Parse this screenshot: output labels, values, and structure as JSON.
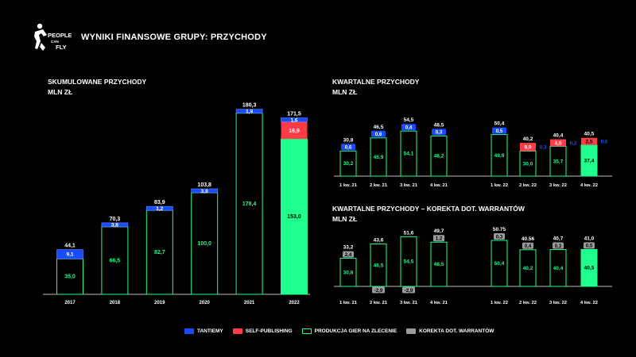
{
  "header": {
    "logo_text": "PEOPLE CAN FLY",
    "title": "WYNIKI FINANSOWE GRUPY: PRZYCHODY"
  },
  "colors": {
    "tantiemy": "#1a4cff",
    "self_publishing": "#ff3b46",
    "produkcja": "#1eff8e",
    "korekta": "#9a9a9a",
    "background": "#000000"
  },
  "legend": {
    "items": [
      {
        "key": "tantiemy",
        "label": "TANTIEMY"
      },
      {
        "key": "self_publishing",
        "label": "SELF-PUBLISHING"
      },
      {
        "key": "produkcja",
        "label": "PRODUKCJA GIER NA ZLECENIE"
      },
      {
        "key": "korekta",
        "label": "KOREKTA DOT. WARRANTÓW"
      }
    ]
  },
  "chart_data": [
    {
      "id": "cumulative",
      "type": "bar",
      "title": "SKUMULOWANE PRZYCHODY",
      "subtitle": "MLN ZŁ",
      "categories": [
        "2017",
        "2018",
        "2019",
        "2020",
        "2021",
        "2022"
      ],
      "series": [
        {
          "name": "PRODUKCJA GIER NA ZLECENIE",
          "values": [
            "35,0",
            "66,5",
            "82,7",
            "100,0",
            "178,4",
            "153,0"
          ]
        },
        {
          "name": "SELF-PUBLISHING",
          "values": [
            null,
            null,
            null,
            null,
            null,
            "16,9"
          ]
        },
        {
          "name": "TANTIEMY",
          "values": [
            "9,1",
            "3,8",
            "1,2",
            "3,8",
            "1,9",
            "1,6"
          ]
        }
      ],
      "totals": [
        "44,1",
        "70,3",
        "83,9",
        "103,8",
        "180,3",
        "171,5"
      ],
      "highlight_last": true
    },
    {
      "id": "quarterly",
      "type": "bar",
      "title": "KWARTALNE PRZYCHODY",
      "subtitle": "MLN ZŁ",
      "categories": [
        "1 kw. 21",
        "2 kw. 21",
        "3 kw. 21",
        "4 kw. 21",
        "1 kw. 22",
        "2 kw. 22",
        "3 kw. 22",
        "4 kw. 22"
      ],
      "series": [
        {
          "name": "PRODUKCJA GIER NA ZLECENIE",
          "values": [
            "30,2",
            "45,9",
            "54,1",
            "48,2",
            "49,9",
            "30,0",
            "35,7",
            "37,4"
          ]
        },
        {
          "name": "SELF-PUBLISHING",
          "values": [
            null,
            null,
            null,
            null,
            null,
            "9,9",
            "4,5",
            "2,5"
          ]
        },
        {
          "name": "TANTIEMY",
          "values": [
            "0,6",
            "0,6",
            "0,4",
            "0,3",
            "0,5",
            "0,3",
            "0,2",
            "0,6"
          ]
        }
      ],
      "totals": [
        "30,8",
        "46,5",
        "54,5",
        "48,5",
        "50,4",
        "40,2",
        "40,4",
        "40,5"
      ],
      "highlight_last": true
    },
    {
      "id": "quarterly_adjusted",
      "type": "bar",
      "title": "KWARTALNE PRZYCHODY – KOREKTA DOT. WARRANTÓW",
      "subtitle": "MLN ZŁ",
      "categories": [
        "1 kw. 21",
        "2 kw. 21",
        "3 kw. 21",
        "4 kw. 21",
        "1 kw. 22",
        "2 kw. 22",
        "3 kw. 22",
        "4 kw. 22"
      ],
      "series": [
        {
          "name": "PRZYCHODY",
          "values": [
            "30,8",
            "46,5",
            "54,5",
            "48,5",
            "50,4",
            "40,2",
            "40,4",
            "40,5"
          ]
        },
        {
          "name": "KOREKTA DOT. WARRANTÓW",
          "values": [
            "2,4",
            "-2,9",
            "-2,9",
            "1,2",
            "0,3",
            "0,4",
            "0,3",
            "0,5"
          ]
        }
      ],
      "totals": [
        "33,2",
        "43,6",
        "51,6",
        "49,7",
        "50.75",
        "40.56",
        "40,7",
        "41,0"
      ],
      "highlight_last": true
    }
  ]
}
